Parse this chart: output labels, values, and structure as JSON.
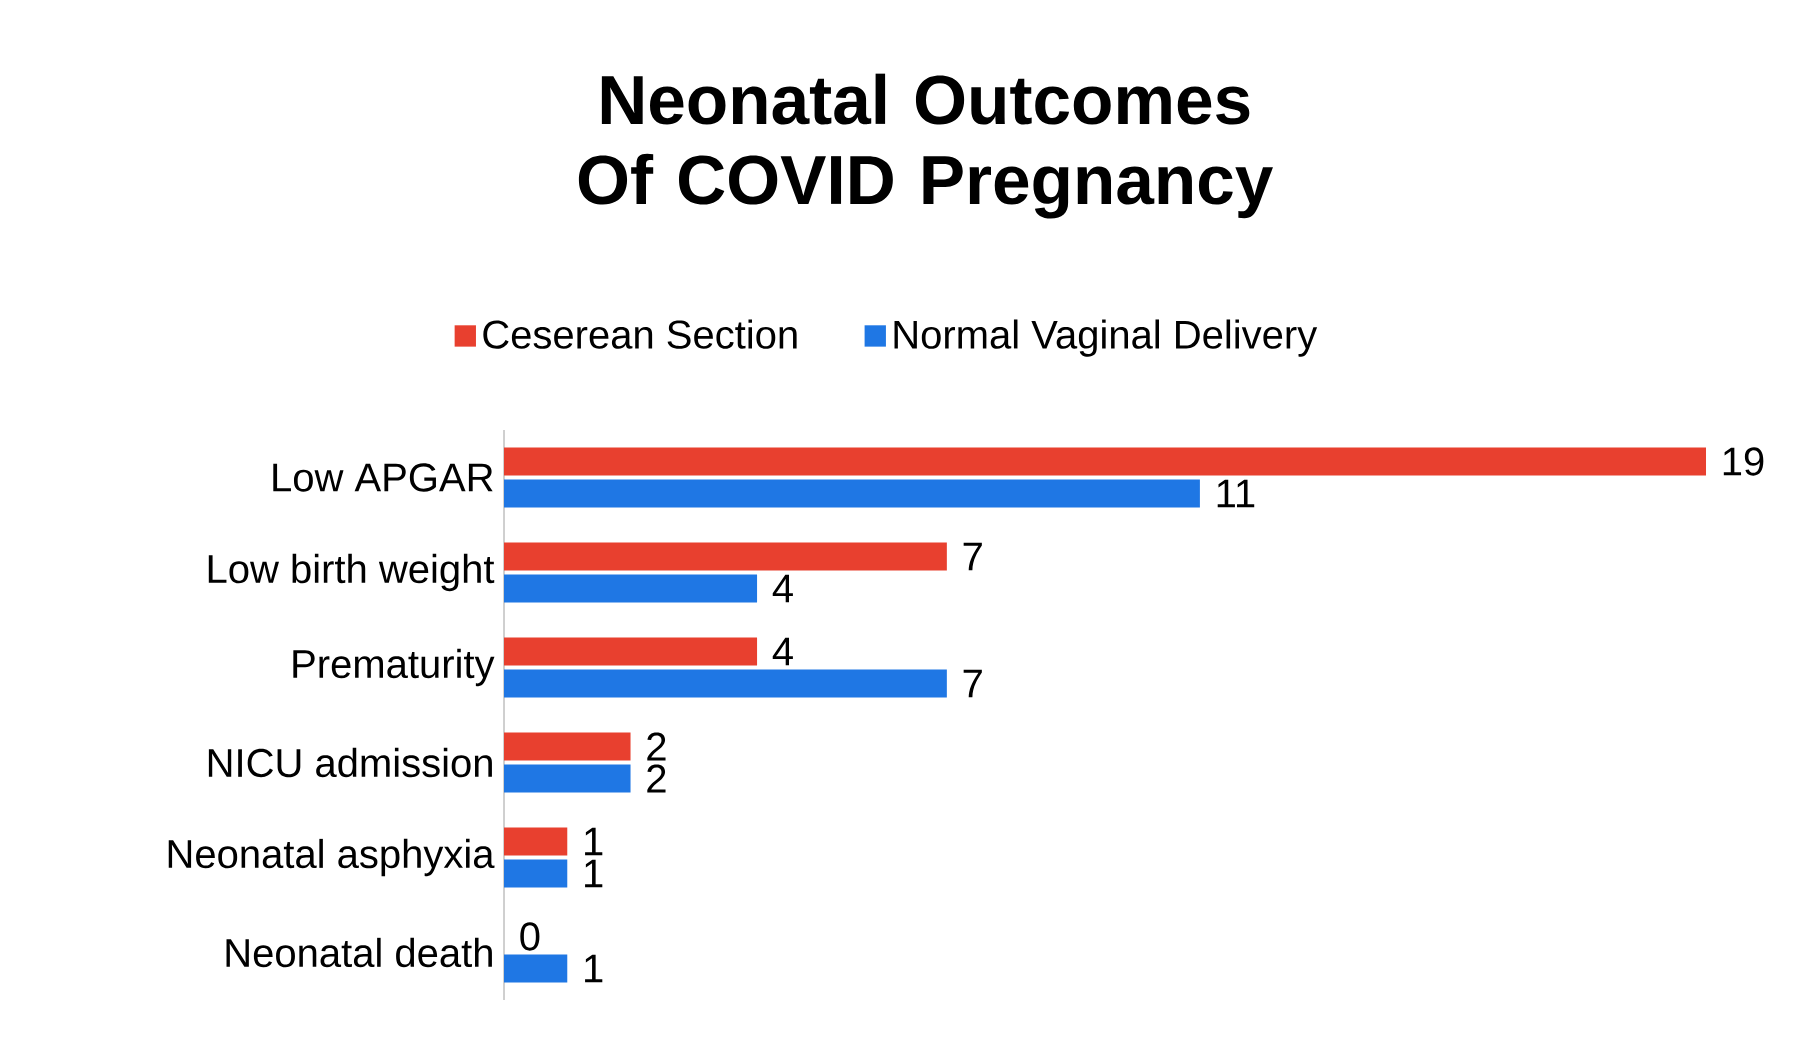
{
  "chart_data": {
    "type": "bar",
    "orientation": "horizontal",
    "title": "Neonatal Outcomes Of COVID Pregnancy",
    "categories": [
      "Low APGAR",
      "Low birth weight",
      "Prematurity",
      "NICU admission",
      "Neonatal asphyxia",
      "Neonatal death"
    ],
    "series": [
      {
        "name": "Ceserean  Section",
        "color": "#e8402f",
        "values": [
          19,
          7,
          4,
          2,
          1,
          0
        ]
      },
      {
        "name": "Normal Vaginal Delivery",
        "color": "#1f77e4",
        "values": [
          11,
          4,
          7,
          2,
          1,
          1
        ]
      }
    ],
    "data_labels": true,
    "legend": "top"
  }
}
